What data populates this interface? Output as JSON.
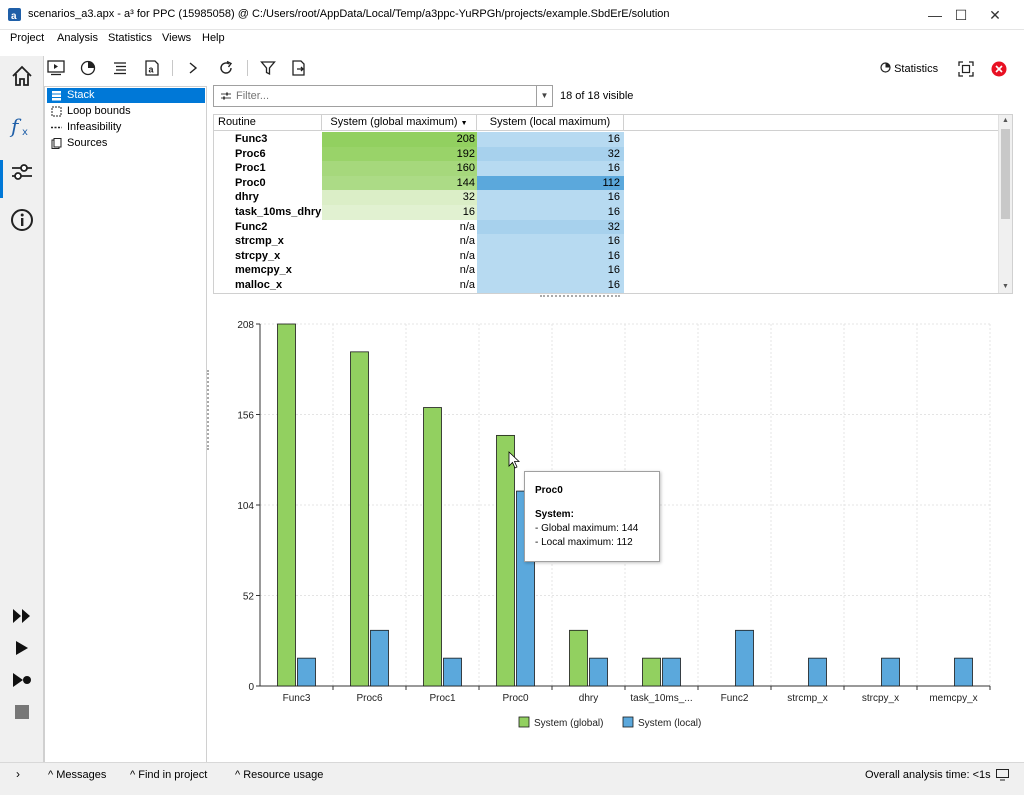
{
  "window": {
    "title": "scenarios_a3.apx - a³ for PPC (15985058) @ C:/Users/root/AppData/Local/Temp/a3ppc-YuRPGh/projects/example.SbdErE/solution",
    "min": "—",
    "max": "☐",
    "close": "✕"
  },
  "menu": [
    {
      "label": "Project"
    },
    {
      "label": "Analysis"
    },
    {
      "label": "Statistics"
    },
    {
      "label": "Views"
    },
    {
      "label": "Help"
    }
  ],
  "toolbar": {
    "statistics_label": "Statistics"
  },
  "nav": {
    "items": [
      {
        "label": "Stack",
        "selected": true
      },
      {
        "label": "Loop bounds",
        "selected": false
      },
      {
        "label": "Infeasibility",
        "selected": false
      },
      {
        "label": "Sources",
        "selected": false
      }
    ]
  },
  "filter": {
    "placeholder": "Filter...",
    "visible_count": "18 of 18 visible"
  },
  "table": {
    "headers": [
      "Routine",
      "System (global maximum)",
      "System (local maximum)"
    ],
    "rows": [
      {
        "name": "Func3",
        "global": "208",
        "local": "16"
      },
      {
        "name": "Proc6",
        "global": "192",
        "local": "32"
      },
      {
        "name": "Proc1",
        "global": "160",
        "local": "16"
      },
      {
        "name": "Proc0",
        "global": "144",
        "local": "112"
      },
      {
        "name": "dhry",
        "global": "32",
        "local": "16"
      },
      {
        "name": "task_10ms_dhry",
        "global": "16",
        "local": "16"
      },
      {
        "name": "Func2",
        "global": "n/a",
        "local": "32"
      },
      {
        "name": "strcmp_x",
        "global": "n/a",
        "local": "16"
      },
      {
        "name": "strcpy_x",
        "global": "n/a",
        "local": "16"
      },
      {
        "name": "memcpy_x",
        "global": "n/a",
        "local": "16"
      },
      {
        "name": "malloc_x",
        "global": "n/a",
        "local": "16"
      }
    ]
  },
  "chart_data": {
    "type": "bar",
    "categories": [
      "Func3",
      "Proc6",
      "Proc1",
      "Proc0",
      "dhry",
      "task_10ms_...",
      "Func2",
      "strcmp_x",
      "strcpy_x",
      "memcpy_x"
    ],
    "series": [
      {
        "name": "System (global)",
        "values": [
          208,
          192,
          160,
          144,
          32,
          16,
          null,
          null,
          null,
          null
        ],
        "color": "#92d060"
      },
      {
        "name": "System (local)",
        "values": [
          16,
          32,
          16,
          112,
          16,
          16,
          32,
          16,
          16,
          16
        ],
        "color": "#5ba8dc"
      }
    ],
    "yticks": [
      0,
      52,
      104,
      156,
      208
    ],
    "ylim": [
      0,
      208
    ],
    "legend_position": "bottom-center",
    "grid": true
  },
  "tooltip": {
    "title": "Proc0",
    "section": "System:",
    "line1": "- Global maximum: 144",
    "line2": "- Local maximum: 112"
  },
  "status": {
    "messages": "Messages",
    "find": "Find in project",
    "resource": "Resource usage",
    "analysis_time": "Overall analysis time: <1s"
  },
  "colors": {
    "accent": "#0078d7",
    "green_bar": "#92d060",
    "blue_bar": "#5ba8dc",
    "close_red": "#e81123"
  }
}
